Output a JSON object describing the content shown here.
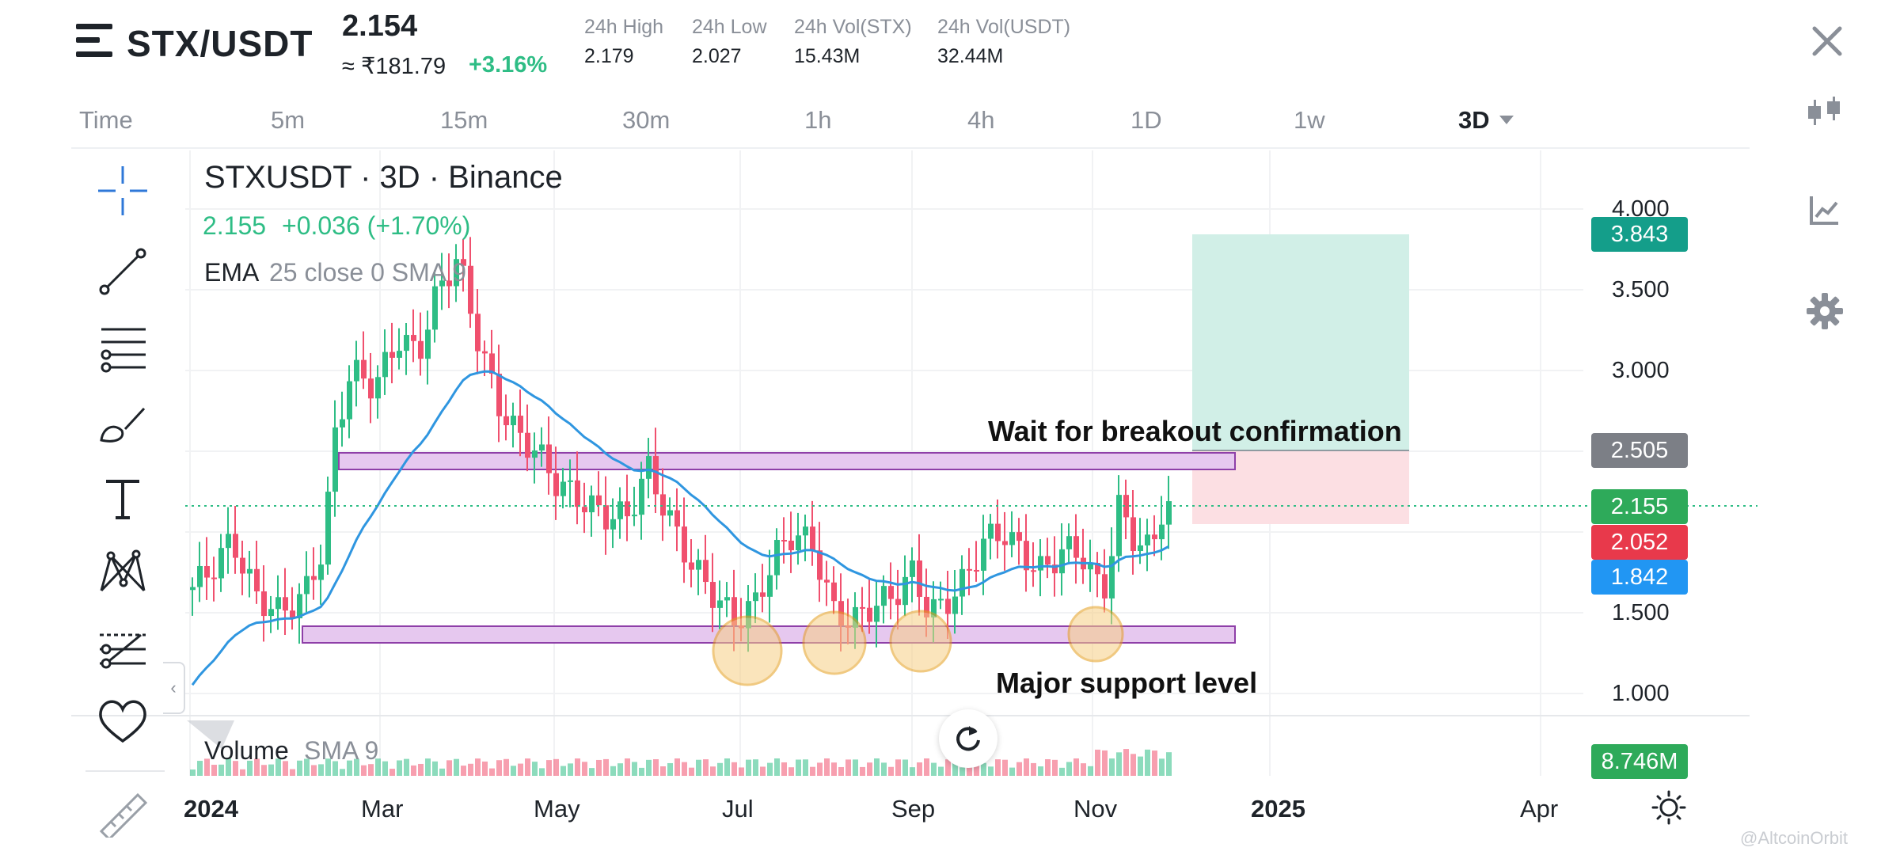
{
  "header": {
    "pair": "STX/USDT",
    "last_price": "2.154",
    "fiat_price": "≈ ₹181.79",
    "change_pct": "+3.16%",
    "stats": [
      {
        "label": "24h High",
        "value": "2.179"
      },
      {
        "label": "24h Low",
        "value": "2.027"
      },
      {
        "label": "24h Vol(STX)",
        "value": "15.43M"
      },
      {
        "label": "24h Vol(USDT)",
        "value": "32.44M"
      }
    ]
  },
  "timeframes": [
    "Time",
    "5m",
    "15m",
    "30m",
    "1h",
    "4h",
    "1D",
    "1w",
    "3D"
  ],
  "active_timeframe": "3D",
  "chart": {
    "title": "STXUSDT · 3D · Binance",
    "ohlc_price": "2.155",
    "ohlc_change": "+0.036 (+1.70%)",
    "indicator_name": "EMA",
    "indicator_params": "25 close 0 SMA 9",
    "volume_name": "Volume",
    "volume_params": "SMA 9",
    "annotation_breakout": "Wait for breakout confirmation",
    "annotation_support": "Major support level",
    "y_axis": [
      "4.000",
      "3.500",
      "3.000",
      "1.500",
      "1.000"
    ],
    "x_axis": [
      "2024",
      "Mar",
      "May",
      "Jul",
      "Sep",
      "Nov",
      "2025",
      "Apr"
    ],
    "price_tags": [
      {
        "label": "3.843",
        "color": "#149e8a"
      },
      {
        "label": "2.505",
        "color": "#7c7f86"
      },
      {
        "label": "2.155",
        "color": "#2eaa5a"
      },
      {
        "label": "2.052",
        "color": "#e8394b"
      },
      {
        "label": "1.842",
        "color": "#2196f3"
      }
    ],
    "volume_tag": {
      "label": "8.746M",
      "color": "#2eaa5a"
    },
    "watermark": "@AltcoinOrbit"
  },
  "colors": {
    "up": "#2ebd85",
    "down": "#f0506e",
    "ema": "#2f96e0",
    "zone": "#e6c8ef",
    "zone_border": "#8e3fa8",
    "target": "#cfeee6",
    "stop": "#fcdde1"
  },
  "toolbar_icons": [
    "crosshair-icon",
    "trend-line-icon",
    "fib-lines-icon",
    "brush-icon",
    "text-icon",
    "pattern-icon",
    "forecast-icon",
    "favorite-icon",
    "ruler-icon"
  ]
}
